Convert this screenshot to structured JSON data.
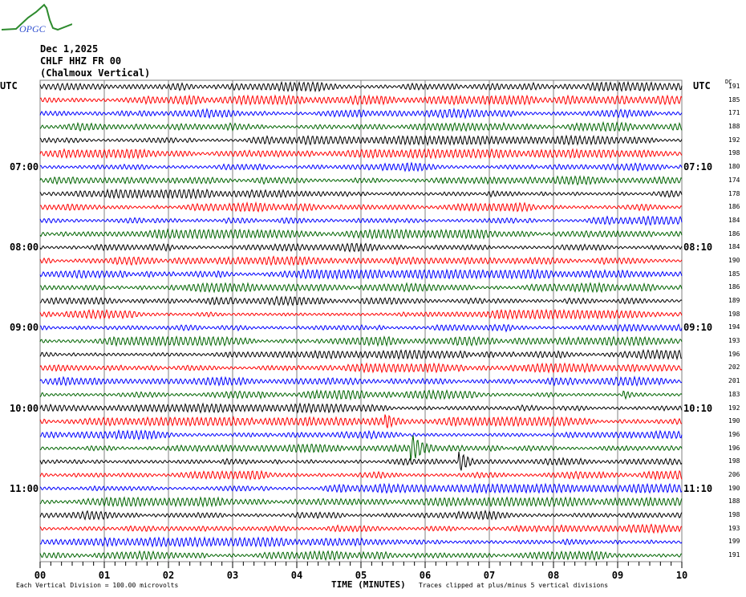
{
  "header": {
    "logo_text": "OPGC",
    "date": "Dec 1,2025",
    "station": "CHLF HHZ FR 00",
    "station_name": "(Chalmoux Vertical)"
  },
  "chart_data": {
    "type": "line",
    "title": "Dec 1,2025 CHLF HHZ FR 00 (Chalmoux Vertical)",
    "xlabel": "TIME (MINUTES)",
    "x_ticks": [
      "00",
      "01",
      "02",
      "03",
      "04",
      "05",
      "06",
      "07",
      "08",
      "09",
      "10"
    ],
    "xlim": [
      0,
      10
    ],
    "left_axis_title": "UTC",
    "right_axis_title": "UTC",
    "dc_title": "DC",
    "left_time_labels": [
      {
        "row": 6,
        "label": "07:00"
      },
      {
        "row": 12,
        "label": "08:00"
      },
      {
        "row": 18,
        "label": "09:00"
      },
      {
        "row": 24,
        "label": "10:00"
      },
      {
        "row": 30,
        "label": "11:00"
      }
    ],
    "right_time_labels": [
      {
        "row": 6,
        "label": "07:10"
      },
      {
        "row": 12,
        "label": "08:10"
      },
      {
        "row": 18,
        "label": "09:10"
      },
      {
        "row": 24,
        "label": "10:10"
      },
      {
        "row": 30,
        "label": "11:10"
      }
    ],
    "trace_colors": [
      "#000000",
      "#ff0000",
      "#0000ff",
      "#006400"
    ],
    "dc_offsets": [
      191,
      185,
      171,
      188,
      192,
      198,
      180,
      174,
      178,
      186,
      184,
      186,
      184,
      190,
      185,
      186,
      189,
      198,
      194,
      193,
      196,
      202,
      201,
      183,
      192,
      190,
      196,
      196,
      198,
      206,
      190,
      188,
      198,
      193,
      199,
      191
    ],
    "events": [
      {
        "row": 25,
        "minute": 5.4,
        "amplitude": 0.6
      },
      {
        "row": 27,
        "minute": 5.8,
        "amplitude": 1.6
      },
      {
        "row": 28,
        "minute": 6.55,
        "amplitude": 1.2
      },
      {
        "row": 23,
        "minute": 9.1,
        "amplitude": 0.4
      }
    ],
    "scale_note": "Each Vertical Division =  100.00 microvolts",
    "clip_note": "Traces clipped at plus/minus 5 vertical divisions"
  }
}
